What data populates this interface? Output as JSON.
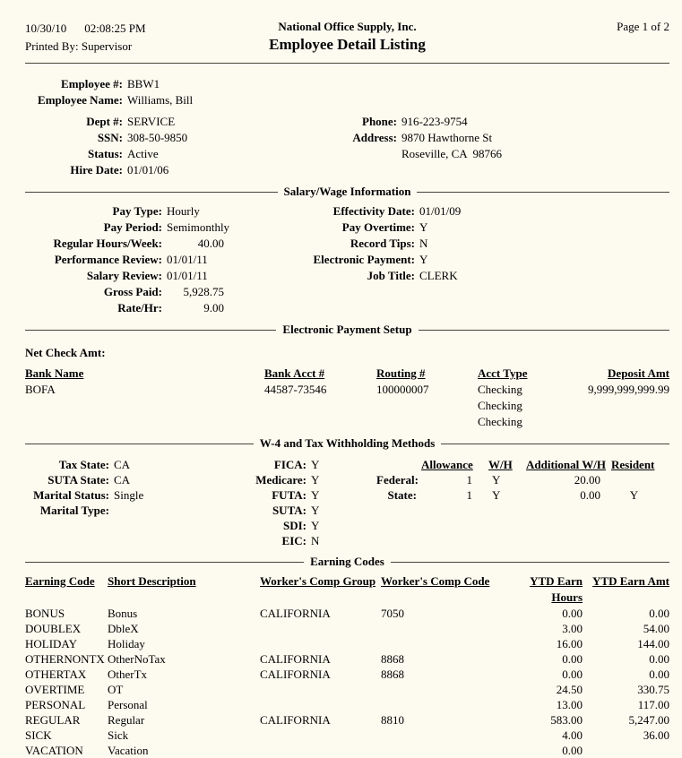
{
  "colors": {
    "page_bg": "#fdfaf0",
    "text": "#000000",
    "rule": "#47433c"
  },
  "header": {
    "date": "10/30/10",
    "time": "02:08:25 PM",
    "printed_by_label": "Printed By:",
    "printed_by_value": "Supervisor",
    "company": "National Office Supply, Inc.",
    "report_title": "Employee Detail Listing",
    "page_info": "Page 1 of 2"
  },
  "employee": {
    "id_label": "Employee #:",
    "id": "BBW1",
    "name_label": "Employee Name:",
    "name": "Williams, Bill",
    "dept_label": "Dept #:",
    "dept": "SERVICE",
    "ssn_label": "SSN:",
    "ssn": "308-50-9850",
    "status_label": "Status:",
    "status": "Active",
    "hire_label": "Hire Date:",
    "hire": "01/01/06",
    "phone_label": "Phone:",
    "phone": "916-223-9754",
    "address_label": "Address:",
    "address1": "9870 Hawthorne St",
    "address2": "Roseville, CA  98766"
  },
  "salary": {
    "section_title": "Salary/Wage Information",
    "left": [
      {
        "label": "Pay Type:",
        "value": "Hourly"
      },
      {
        "label": "Pay Period:",
        "value": "Semimonthly"
      },
      {
        "label": "Regular Hours/Week:",
        "value": "40.00"
      },
      {
        "label": "Performance Review:",
        "value": "01/01/11"
      },
      {
        "label": "Salary Review:",
        "value": "01/01/11"
      },
      {
        "label": "Gross Paid:",
        "value": "5,928.75"
      },
      {
        "label": "Rate/Hr:",
        "value": "9.00"
      }
    ],
    "right": [
      {
        "label": "Effectivity Date:",
        "value": "01/01/09"
      },
      {
        "label": "Pay Overtime:",
        "value": "Y"
      },
      {
        "label": "Record Tips:",
        "value": "N"
      },
      {
        "label": "Electronic Payment:",
        "value": "Y"
      },
      {
        "label": "Job Title:",
        "value": "CLERK"
      }
    ]
  },
  "payment_setup": {
    "section_title": "Electronic Payment Setup",
    "net_check_label": "Net Check Amt:",
    "headers": [
      "Bank Name",
      "Bank Acct #",
      "Routing #",
      "Acct Type",
      "Deposit Amt"
    ],
    "rows": [
      {
        "bank": "BOFA",
        "acct": "44587-73546",
        "routing": "100000007",
        "type": "Checking",
        "amt": "9,999,999,999.99"
      },
      {
        "bank": "",
        "acct": "",
        "routing": "",
        "type": "Checking",
        "amt": ""
      },
      {
        "bank": "",
        "acct": "",
        "routing": "",
        "type": "Checking",
        "amt": ""
      }
    ]
  },
  "w4": {
    "section_title": "W-4 and Tax Withholding Methods",
    "left": [
      {
        "label": "Tax State:",
        "value": "CA"
      },
      {
        "label": "SUTA State:",
        "value": "CA"
      },
      {
        "label": "Marital Status:",
        "value": "Single"
      },
      {
        "label": "Marital Type:",
        "value": ""
      }
    ],
    "mid": [
      {
        "label": "FICA:",
        "value": "Y"
      },
      {
        "label": "Medicare:",
        "value": "Y"
      },
      {
        "label": "FUTA:",
        "value": "Y"
      },
      {
        "label": "SUTA:",
        "value": "Y"
      },
      {
        "label": "SDI:",
        "value": "Y"
      },
      {
        "label": "EIC:",
        "value": "N"
      }
    ],
    "table": {
      "headers": [
        "Allowance",
        "W/H",
        "Additional W/H",
        "Resident"
      ],
      "rows": [
        {
          "label": "Federal:",
          "allowance": "1",
          "wh": "Y",
          "additional": "20.00",
          "resident": ""
        },
        {
          "label": "State:",
          "allowance": "1",
          "wh": "Y",
          "additional": "0.00",
          "resident": "Y"
        }
      ]
    }
  },
  "earnings": {
    "section_title": "Earning Codes",
    "headers": [
      "Earning Code",
      "Short Description",
      "Worker's Comp Group",
      "Worker's Comp Code",
      "YTD Earn Hours",
      "YTD Earn Amt"
    ],
    "rows": [
      {
        "code": "BONUS",
        "desc": "Bonus",
        "group": "CALIFORNIA",
        "comp_code": "7050",
        "hours": "0.00",
        "amt": "0.00"
      },
      {
        "code": "DOUBLEX",
        "desc": "DbleX",
        "group": "",
        "comp_code": "",
        "hours": "3.00",
        "amt": "54.00"
      },
      {
        "code": "HOLIDAY",
        "desc": "Holiday",
        "group": "",
        "comp_code": "",
        "hours": "16.00",
        "amt": "144.00"
      },
      {
        "code": "OTHERNONTX",
        "desc": "OtherNoTax",
        "group": "CALIFORNIA",
        "comp_code": "8868",
        "hours": "0.00",
        "amt": "0.00"
      },
      {
        "code": "OTHERTAX",
        "desc": "OtherTx",
        "group": "CALIFORNIA",
        "comp_code": "8868",
        "hours": "0.00",
        "amt": "0.00"
      },
      {
        "code": "OVERTIME",
        "desc": "OT",
        "group": "",
        "comp_code": "",
        "hours": "24.50",
        "amt": "330.75"
      },
      {
        "code": "PERSONAL",
        "desc": "Personal",
        "group": "",
        "comp_code": "",
        "hours": "13.00",
        "amt": "117.00"
      },
      {
        "code": "REGULAR",
        "desc": "Regular",
        "group": "CALIFORNIA",
        "comp_code": "8810",
        "hours": "583.00",
        "amt": "5,247.00"
      },
      {
        "code": "SICK",
        "desc": "Sick",
        "group": "",
        "comp_code": "",
        "hours": "4.00",
        "amt": "36.00"
      },
      {
        "code": "VACATION",
        "desc": "Vacation",
        "group": "",
        "comp_code": "",
        "hours": "0.00",
        "amt": ""
      }
    ]
  }
}
